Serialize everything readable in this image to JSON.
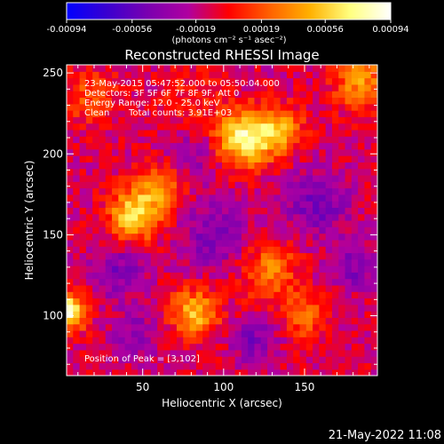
{
  "chart_data": {
    "type": "heatmap",
    "title": "Reconstructed RHESSI Image",
    "xlabel": "Heliocentric X (arcsec)",
    "ylabel": "Heliocentric Y (arcsec)",
    "xlim": [
      3,
      195
    ],
    "ylim": [
      63,
      255
    ],
    "x_ticks": [
      50,
      100,
      150
    ],
    "y_ticks": [
      100,
      150,
      200,
      250
    ],
    "grid": false,
    "colorbar": {
      "ticks": [
        "-0.00094",
        "-0.00056",
        "-0.00019",
        "0.00019",
        "0.00056",
        "0.00094"
      ],
      "range": [
        -0.00094,
        0.00094
      ],
      "unit_label": "(photons cm⁻² s⁻¹ asec⁻²)",
      "gradient": [
        "#0000ff",
        "#3a00d0",
        "#7a00b0",
        "#b000a0",
        "#ff0000",
        "#ff6000",
        "#ffb000",
        "#ffff80",
        "#ffffff"
      ]
    },
    "annotations": {
      "time": "23-May-2015 05:47:52.000 to 05:50:04.000",
      "detectors": "Detectors: 3F 5F 6F 7F 8F 9F, Att 0",
      "energy": "Energy Range: 12.0 - 25.0 keV",
      "method": "Clean",
      "counts": "Total counts: 3.91E+03",
      "peak": "Position of Peak = [3,102]"
    },
    "peak_position": [
      3,
      102
    ],
    "image_grid": {
      "nx": 48,
      "ny": 48,
      "cell_arcsec": 4.0
    },
    "blobs": [
      {
        "x": 3,
        "y": 103,
        "amplitude": 0.00094,
        "sigma": 8
      },
      {
        "x": 113,
        "y": 210,
        "amplitude": 0.00088,
        "sigma": 12
      },
      {
        "x": 135,
        "y": 215,
        "amplitude": 0.0005,
        "sigma": 10
      },
      {
        "x": 45,
        "y": 162,
        "amplitude": 0.00075,
        "sigma": 11
      },
      {
        "x": 82,
        "y": 102,
        "amplitude": 0.00065,
        "sigma": 10
      },
      {
        "x": 60,
        "y": 180,
        "amplitude": 0.00045,
        "sigma": 10
      },
      {
        "x": 185,
        "y": 245,
        "amplitude": 0.0005,
        "sigma": 12
      },
      {
        "x": 128,
        "y": 128,
        "amplitude": 0.00045,
        "sigma": 12
      },
      {
        "x": 150,
        "y": 100,
        "amplitude": 0.00035,
        "sigma": 10
      },
      {
        "x": 18,
        "y": 235,
        "amplitude": 0.0003,
        "sigma": 12
      },
      {
        "x": 80,
        "y": 232,
        "amplitude": 0.00018,
        "sigma": 14
      },
      {
        "x": 35,
        "y": 128,
        "amplitude": -0.0003,
        "sigma": 12
      },
      {
        "x": 95,
        "y": 150,
        "amplitude": -0.00035,
        "sigma": 14
      },
      {
        "x": 158,
        "y": 170,
        "amplitude": -0.00035,
        "sigma": 14
      },
      {
        "x": 45,
        "y": 88,
        "amplitude": -0.00028,
        "sigma": 10
      },
      {
        "x": 120,
        "y": 85,
        "amplitude": -0.00032,
        "sigma": 10
      },
      {
        "x": 180,
        "y": 130,
        "amplitude": -0.0003,
        "sigma": 10
      },
      {
        "x": 80,
        "y": 200,
        "amplitude": -0.00022,
        "sigma": 12
      }
    ]
  },
  "footer": {
    "timestamp": "21-May-2022 11:08"
  }
}
